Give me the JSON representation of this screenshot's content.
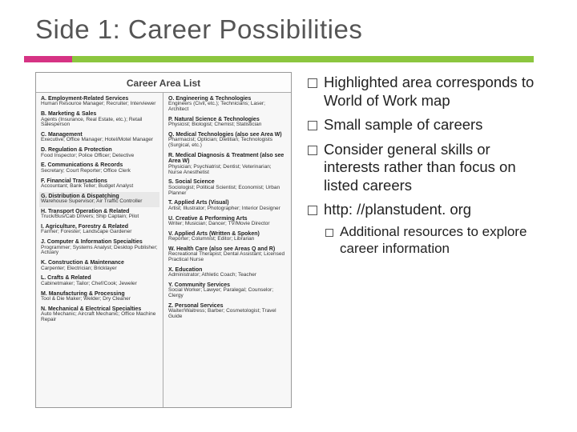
{
  "title": "Side 1: Career Possibilities",
  "accent": {
    "color_a": "#d63384",
    "width_a": 60,
    "color_b": "#8cc63f"
  },
  "panel_title": "Career Area List",
  "highlight_bg": "#e6e6e6",
  "left_column": [
    {
      "head": "A. Employment-Related Services",
      "sub": "Human Resource Manager; Recruiter; Interviewer"
    },
    {
      "head": "B. Marketing & Sales",
      "sub": "Agents (Insurance, Real Estate, etc.); Retail Salesperson"
    },
    {
      "head": "C. Management",
      "sub": "Executive; Office Manager; Hotel/Motel Manager"
    },
    {
      "head": "D. Regulation & Protection",
      "sub": "Food Inspector; Police Officer; Detective"
    },
    {
      "head": "E. Communications & Records",
      "sub": "Secretary; Court Reporter; Office Clerk"
    },
    {
      "head": "F. Financial Transactions",
      "sub": "Accountant; Bank Teller; Budget Analyst"
    },
    {
      "head": "G. Distribution & Dispatching",
      "sub": "Warehouse Supervisor; Air Traffic Controller",
      "hl": true
    },
    {
      "head": "H. Transport Operation & Related",
      "sub": "Truck/Bus/Cab Drivers; Ship Captain; Pilot"
    },
    {
      "head": "I. Agriculture, Forestry & Related",
      "sub": "Farmer; Forester; Landscape Gardener"
    },
    {
      "head": "J. Computer & Information Specialties",
      "sub": "Programmer; Systems Analyst; Desktop Publisher; Actuary"
    },
    {
      "head": "K. Construction & Maintenance",
      "sub": "Carpenter; Electrician; Bricklayer"
    },
    {
      "head": "L. Crafts & Related",
      "sub": "Cabinetmaker; Tailor; Chef/Cook; Jeweler"
    },
    {
      "head": "M. Manufacturing & Processing",
      "sub": "Tool & Die Maker; Welder; Dry Cleaner"
    },
    {
      "head": "N. Mechanical & Electrical Specialties",
      "sub": "Auto Mechanic; Aircraft Mechanic; Office Machine Repair"
    }
  ],
  "right_column": [
    {
      "head": "O. Engineering & Technologies",
      "sub": "Engineers (Civil, etc.); Technicians; Laser; Architect"
    },
    {
      "head": "P. Natural Science & Technologies",
      "sub": "Physicist; Biologist; Chemist; Statistician"
    },
    {
      "head": "Q. Medical Technologies (also see Area W)",
      "sub": "Pharmacist; Optician; Dietitian; Technologists (Surgical, etc.)"
    },
    {
      "head": "R. Medical Diagnosis & Treatment (also see Area W)",
      "sub": "Physician; Psychiatrist; Dentist; Veterinarian; Nurse Anesthetist"
    },
    {
      "head": "S. Social Science",
      "sub": "Sociologist; Political Scientist; Economist; Urban Planner"
    },
    {
      "head": "T. Applied Arts (Visual)",
      "sub": "Artist; Illustrator; Photographer; Interior Designer"
    },
    {
      "head": "U. Creative & Performing Arts",
      "sub": "Writer; Musician; Dancer; TV/Movie Director"
    },
    {
      "head": "V. Applied Arts (Written & Spoken)",
      "sub": "Reporter; Columnist; Editor; Librarian"
    },
    {
      "head": "W. Health Care (also see Areas Q and R)",
      "sub": "Recreational Therapist; Dental Assistant; Licensed Practical Nurse"
    },
    {
      "head": "X. Education",
      "sub": "Administrator; Athletic Coach; Teacher"
    },
    {
      "head": "Y. Community Services",
      "sub": "Social Worker; Lawyer; Paralegal; Counselor; Clergy"
    },
    {
      "head": "Z. Personal Services",
      "sub": "Waiter/Waitress; Barber; Cosmetologist; Travel Guide"
    }
  ],
  "bullets": [
    {
      "text": "Highlighted area corresponds to World of Work map"
    },
    {
      "text": "Small sample of careers"
    },
    {
      "text": "Consider general skills or interests rather than focus on listed careers"
    },
    {
      "text": "http: //planstudent. org",
      "sub": [
        "Additional resources to explore career information"
      ]
    }
  ]
}
